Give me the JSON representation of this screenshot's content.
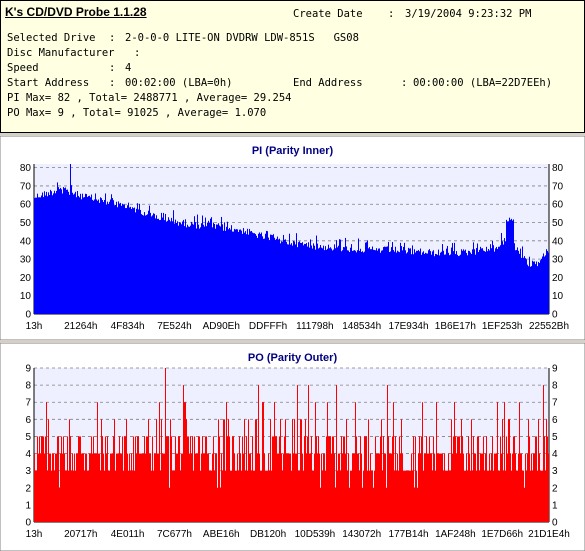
{
  "info": {
    "app_title": "K's CD/DVD Probe 1.1.28",
    "create_date_label": "Create Date",
    "create_date_value": "3/19/2004 9:23:32 PM",
    "selected_drive_label": "Selected Drive",
    "selected_drive_value": "2-0-0-0 LITE-ON DVDRW LDW-851S   GS08",
    "disc_manufacturer_label": "Disc Manufacturer",
    "disc_manufacturer_value": "",
    "speed_label": "Speed",
    "speed_value": "4",
    "start_address_label": "Start Address",
    "start_address_value": "00:02:00 (LBA=0h)",
    "end_address_label": "End Address",
    "end_address_value": "00:00:00 (LBA=22D7EEh)",
    "pi_summary": "PI Max= 82 , Total= 2488771 , Average= 29.254",
    "po_summary": "PO Max= 9 , Total= 91025 , Average= 1.070"
  },
  "chart_data": [
    {
      "type": "bar",
      "title": "PI (Parity Inner)",
      "xlabel": "",
      "ylabel": "",
      "ylim": [
        0,
        82
      ],
      "y_ticks": [
        0,
        10,
        20,
        30,
        40,
        50,
        60,
        70,
        80
      ],
      "x_tick_labels": [
        "13h",
        "21264h",
        "4F834h",
        "7E524h",
        "AD90Eh",
        "DDFFFh",
        "111798h",
        "148534h",
        "17E934h",
        "1B6E17h",
        "1EF253h",
        "22552Bh"
      ],
      "grid": true,
      "color": "#0000ff",
      "envelope_x_fraction": [
        0,
        0.05,
        0.1,
        0.15,
        0.2,
        0.25,
        0.3,
        0.35,
        0.4,
        0.45,
        0.5,
        0.55,
        0.6,
        0.65,
        0.7,
        0.75,
        0.8,
        0.85,
        0.88,
        0.9,
        0.92,
        0.94,
        0.96,
        0.98,
        1.0
      ],
      "envelope_values": [
        66,
        70,
        66,
        63,
        59,
        54,
        51,
        50,
        48,
        44,
        41,
        39,
        38,
        37,
        37,
        36,
        35,
        36,
        37,
        38,
        44,
        37,
        29,
        30,
        37
      ],
      "max_value": 82,
      "max_x_fraction": 0.07,
      "secondary_peak_value": 53,
      "secondary_peak_x_fraction": 0.925
    },
    {
      "type": "bar",
      "title": "PO (Parity Outer)",
      "xlabel": "",
      "ylabel": "",
      "ylim": [
        0,
        9
      ],
      "y_ticks": [
        0,
        1,
        2,
        3,
        4,
        5,
        6,
        7,
        8,
        9
      ],
      "x_tick_labels": [
        "13h",
        "20717h",
        "4E011h",
        "7C677h",
        "ABE16h",
        "DB120h",
        "10D539h",
        "143072h",
        "177B14h",
        "1AF248h",
        "1E7D66h",
        "21D1E4h"
      ],
      "grid": true,
      "color": "#ff0000",
      "baseline_value": 3,
      "common_peak_values": [
        4,
        5
      ],
      "occasional_peak_values": [
        6,
        7,
        8
      ],
      "max_value": 9,
      "max_x_fraction": 0.255,
      "min_dip_value": 2
    }
  ]
}
